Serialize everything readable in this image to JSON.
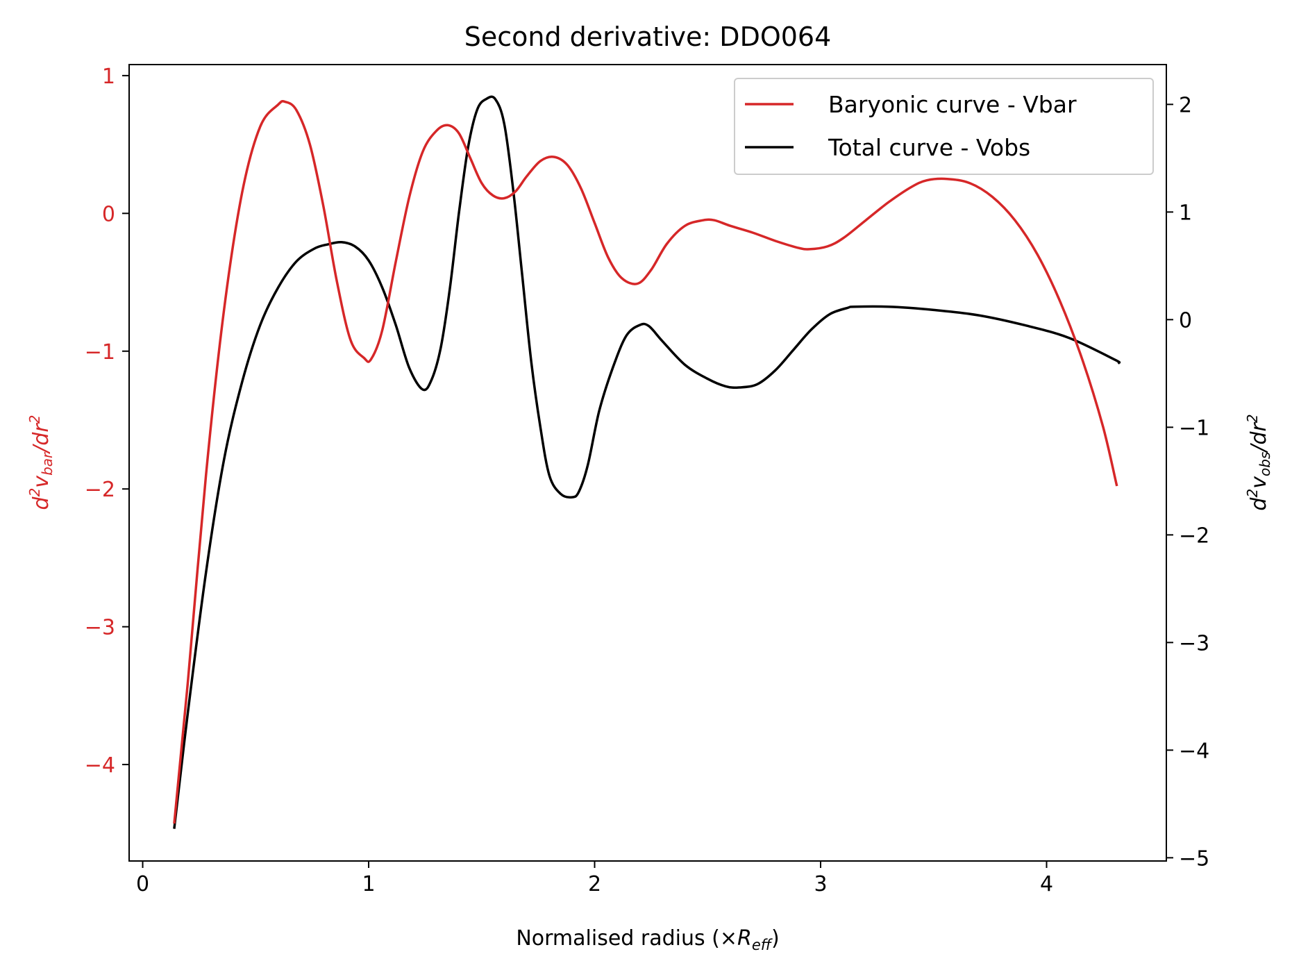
{
  "chart_data": {
    "type": "line",
    "title": "Second derivative: DDO064",
    "xlabel": {
      "text": "Normalised radius (×",
      "sym": "R",
      "sub": "eff",
      "close": ")"
    },
    "ylabel_left": {
      "a": "d",
      "sup1": "2",
      "b": "v",
      "sub": "bar",
      "c": "/dr",
      "sup2": "2"
    },
    "ylabel_right": {
      "a": "d",
      "sup1": "2",
      "b": "v",
      "sub": "obs",
      "c": "/dr",
      "sup2": "2"
    },
    "xlim": [
      -0.06,
      4.53
    ],
    "ylim_left": [
      -4.7,
      1.08
    ],
    "ylim_right": [
      -5.03,
      2.37
    ],
    "xticks": [
      0,
      1,
      2,
      3,
      4
    ],
    "xtick_labels": [
      "0",
      "1",
      "2",
      "3",
      "4"
    ],
    "yticks_left": [
      1,
      0,
      -1,
      -2,
      -3,
      -4
    ],
    "ytick_labels_left": [
      "1",
      "0",
      "−1",
      "−2",
      "−3",
      "−4"
    ],
    "yticks_right": [
      2,
      1,
      0,
      -1,
      -2,
      -3,
      -4,
      -5
    ],
    "ytick_labels_right": [
      "2",
      "1",
      "0",
      "−1",
      "−2",
      "−3",
      "−4",
      "−5"
    ],
    "legend_position": "upper right",
    "colors": {
      "vbar": "#d62728",
      "vobs": "#000000",
      "left_axis": "#d62728",
      "right_axis": "#000000"
    },
    "series": [
      {
        "name": "Baryonic curve - Vbar",
        "axis": "left",
        "color": "#d62728",
        "x": [
          0.14,
          0.2,
          0.28,
          0.36,
          0.44,
          0.52,
          0.6,
          0.63,
          0.68,
          0.74,
          0.8,
          0.86,
          0.92,
          0.98,
          1.01,
          1.06,
          1.12,
          1.18,
          1.24,
          1.3,
          1.35,
          1.4,
          1.45,
          1.5,
          1.55,
          1.6,
          1.65,
          1.7,
          1.76,
          1.82,
          1.88,
          1.94,
          2.0,
          2.06,
          2.12,
          2.19,
          2.25,
          2.32,
          2.4,
          2.48,
          2.53,
          2.6,
          2.7,
          2.8,
          2.9,
          2.95,
          3.03,
          3.1,
          3.2,
          3.3,
          3.4,
          3.47,
          3.56,
          3.66,
          3.76,
          3.86,
          3.96,
          4.06,
          4.16,
          4.25,
          4.31
        ],
        "y": [
          -4.42,
          -3.4,
          -1.9,
          -0.7,
          0.15,
          0.63,
          0.79,
          0.81,
          0.75,
          0.5,
          0.05,
          -0.5,
          -0.92,
          -1.05,
          -1.06,
          -0.85,
          -0.35,
          0.12,
          0.45,
          0.6,
          0.64,
          0.58,
          0.4,
          0.22,
          0.13,
          0.11,
          0.16,
          0.27,
          0.38,
          0.41,
          0.35,
          0.18,
          -0.07,
          -0.32,
          -0.47,
          -0.51,
          -0.41,
          -0.22,
          -0.09,
          -0.05,
          -0.05,
          -0.09,
          -0.14,
          -0.2,
          -0.25,
          -0.26,
          -0.24,
          -0.18,
          -0.05,
          0.08,
          0.19,
          0.24,
          0.25,
          0.22,
          0.12,
          -0.05,
          -0.3,
          -0.64,
          -1.07,
          -1.55,
          -1.97
        ]
      },
      {
        "name": "Total curve - Vobs",
        "axis": "right",
        "color": "#000000",
        "x": [
          0.14,
          0.2,
          0.28,
          0.36,
          0.44,
          0.52,
          0.6,
          0.68,
          0.76,
          0.82,
          0.88,
          0.94,
          1.0,
          1.06,
          1.12,
          1.18,
          1.24,
          1.28,
          1.32,
          1.36,
          1.4,
          1.44,
          1.48,
          1.52,
          1.56,
          1.6,
          1.64,
          1.68,
          1.72,
          1.76,
          1.8,
          1.85,
          1.9,
          1.93,
          1.97,
          2.02,
          2.08,
          2.14,
          2.2,
          2.24,
          2.3,
          2.4,
          2.5,
          2.58,
          2.64,
          2.72,
          2.8,
          2.88,
          2.96,
          3.04,
          3.12,
          3.15,
          3.3,
          3.5,
          3.7,
          3.9,
          4.1,
          4.3,
          4.32
        ],
        "y": [
          -4.72,
          -3.65,
          -2.35,
          -1.3,
          -0.58,
          -0.05,
          0.3,
          0.54,
          0.66,
          0.7,
          0.72,
          0.68,
          0.55,
          0.3,
          -0.05,
          -0.45,
          -0.65,
          -0.55,
          -0.25,
          0.3,
          1.0,
          1.6,
          1.95,
          2.05,
          2.05,
          1.82,
          1.2,
          0.4,
          -0.4,
          -1.0,
          -1.45,
          -1.62,
          -1.65,
          -1.6,
          -1.35,
          -0.85,
          -0.45,
          -0.15,
          -0.05,
          -0.06,
          -0.2,
          -0.42,
          -0.55,
          -0.62,
          -0.63,
          -0.6,
          -0.47,
          -0.28,
          -0.09,
          0.05,
          0.11,
          0.12,
          0.12,
          0.09,
          0.04,
          -0.05,
          -0.17,
          -0.37,
          -0.4
        ]
      }
    ]
  }
}
